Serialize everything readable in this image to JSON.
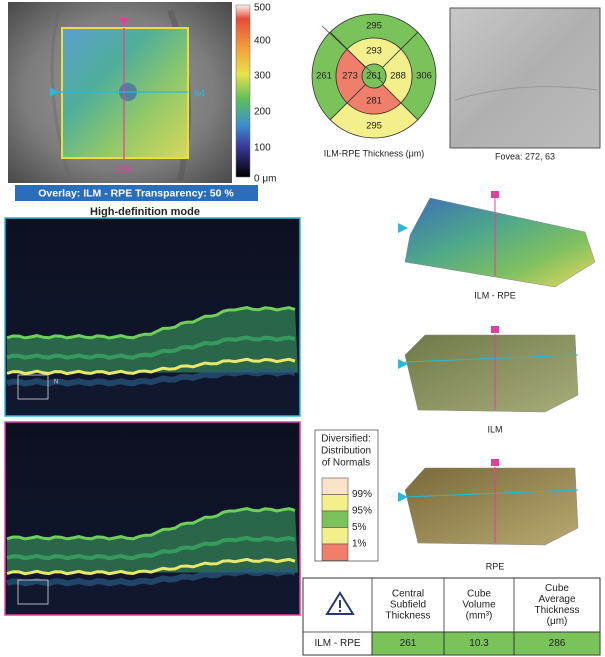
{
  "fundus": {
    "scale_labels": [
      "500",
      "400",
      "300",
      "200",
      "100",
      "0 μm"
    ],
    "cursor_y_label": "64",
    "cursor_x_label": "256",
    "overlay_caption": "Overlay: ILM - RPE  Transparency: 50 %"
  },
  "scan_mode": "High-definition mode",
  "scan_label": "N",
  "thickness_map": {
    "outer_top": "295",
    "inner_top": "293",
    "outer_left": "261",
    "inner_left": "273",
    "center": "261",
    "inner_right": "288",
    "outer_right": "306",
    "inner_bottom": "281",
    "outer_bottom": "295",
    "caption": "ILM-RPE Thickness (μm)"
  },
  "fovea": {
    "caption": "Fovea: 272, 63"
  },
  "surface_maps": [
    "ILM - RPE",
    "ILM",
    "RPE"
  ],
  "normals_legend": {
    "title": [
      "Diversified:",
      "Distribution",
      "of Normals"
    ],
    "levels": [
      "99%",
      "95%",
      "5%",
      "1%"
    ]
  },
  "table": {
    "headers": [
      [
        "Central",
        "Subfield",
        "Thickness"
      ],
      [
        "Cube",
        "Volume",
        "(mm³)"
      ],
      [
        "Cube",
        "Average",
        "Thickness",
        "(μm)"
      ]
    ],
    "rows": [
      [
        "ILM - RPE",
        "261",
        "10.3",
        "286"
      ]
    ]
  }
}
